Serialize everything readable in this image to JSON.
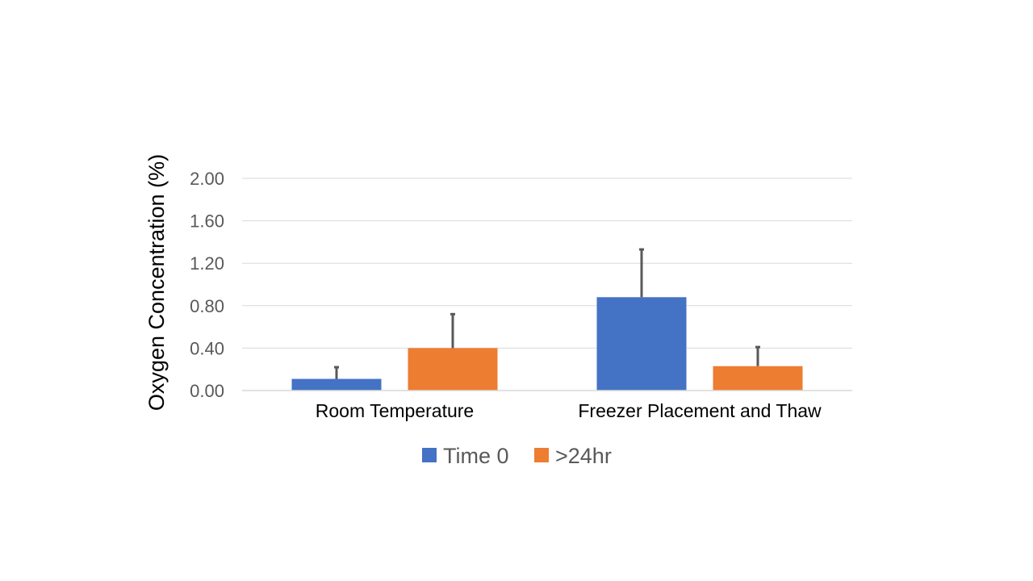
{
  "chart_data": {
    "type": "bar",
    "title": "",
    "xlabel": "",
    "ylabel": "Oxygen Concentration (%)",
    "ylim": [
      0,
      2.0
    ],
    "yticks": [
      "0.00",
      "0.40",
      "0.80",
      "1.20",
      "1.60",
      "2.00"
    ],
    "ytick_values": [
      0,
      0.4,
      0.8,
      1.2,
      1.6,
      2.0
    ],
    "grid": true,
    "legend_position": "bottom",
    "categories": [
      "Room Temperature",
      "Freezer Placement and Thaw"
    ],
    "series": [
      {
        "name": "Time 0",
        "color": "#4472c4",
        "values": [
          0.11,
          0.88
        ],
        "error_upper": [
          0.11,
          0.45
        ]
      },
      {
        "name": ">24hr",
        "color": "#ed7d31",
        "values": [
          0.4,
          0.23
        ],
        "error_upper": [
          0.32,
          0.18
        ]
      }
    ],
    "colors": {
      "grid": "#d9d9d9",
      "axis": "#d9d9d9",
      "error_bar": "#595959"
    }
  }
}
